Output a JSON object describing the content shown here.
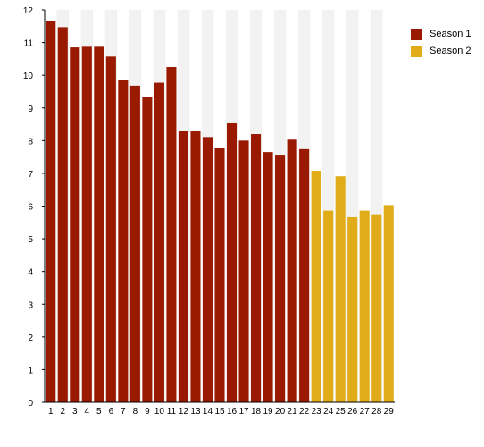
{
  "chart_data": {
    "type": "bar",
    "title": "",
    "xlabel": "",
    "ylabel": "",
    "ylim": [
      0,
      12
    ],
    "yticks": [
      0,
      1,
      2,
      3,
      4,
      5,
      6,
      7,
      8,
      9,
      10,
      11,
      12
    ],
    "categories": [
      "1",
      "2",
      "3",
      "4",
      "5",
      "6",
      "7",
      "8",
      "9",
      "10",
      "11",
      "12",
      "13",
      "14",
      "15",
      "16",
      "17",
      "18",
      "19",
      "20",
      "21",
      "22",
      "23",
      "24",
      "25",
      "26",
      "27",
      "28",
      "29"
    ],
    "series": [
      {
        "name": "Season 1",
        "color": "#991a00",
        "x": [
          "1",
          "2",
          "3",
          "4",
          "5",
          "6",
          "7",
          "8",
          "9",
          "10",
          "11",
          "12",
          "13",
          "14",
          "15",
          "16",
          "17",
          "18",
          "19",
          "20",
          "21",
          "22"
        ],
        "values": [
          11.67,
          11.47,
          10.85,
          10.87,
          10.87,
          10.57,
          9.86,
          9.68,
          9.33,
          9.77,
          10.25,
          8.31,
          8.31,
          8.11,
          7.77,
          8.53,
          8.0,
          8.2,
          7.65,
          7.57,
          8.03,
          7.74
        ]
      },
      {
        "name": "Season 2",
        "color": "#e0ac18",
        "x": [
          "23",
          "24",
          "25",
          "26",
          "27",
          "28",
          "29"
        ],
        "values": [
          7.08,
          5.86,
          6.91,
          5.66,
          5.86,
          5.75,
          6.03
        ]
      }
    ],
    "grid": true,
    "band_color": "#f2f2f2",
    "legend_position": "top-right"
  }
}
